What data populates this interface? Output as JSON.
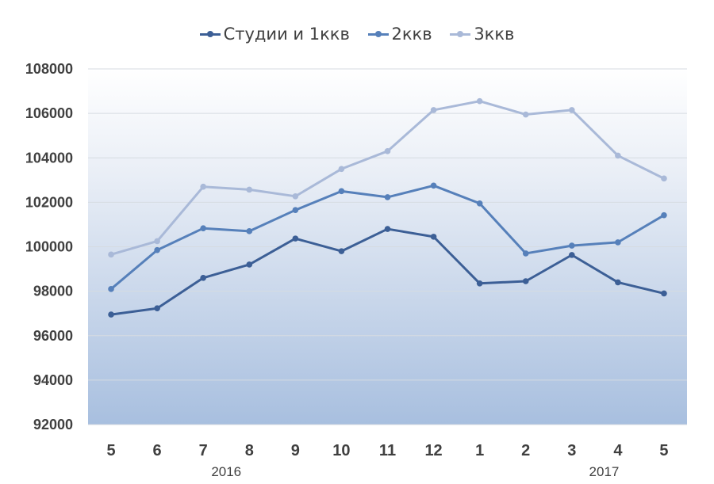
{
  "chart_data": {
    "type": "line",
    "categories": [
      "5",
      "6",
      "7",
      "8",
      "9",
      "10",
      "11",
      "12",
      "1",
      "2",
      "3",
      "4",
      "5"
    ],
    "year_labels": [
      {
        "label": "2016",
        "category_index": 2.5
      },
      {
        "label": "2017",
        "category_index": 10.7
      }
    ],
    "ylim": [
      92000,
      108000
    ],
    "yticks": [
      "92000",
      "94000",
      "96000",
      "98000",
      "100000",
      "102000",
      "104000",
      "106000",
      "108000"
    ],
    "grid": true,
    "legend_position": "top",
    "series": [
      {
        "name": "Студии и 1ккв",
        "color": "#3c5f96",
        "values": [
          96950,
          97230,
          98600,
          99200,
          100370,
          99800,
          100800,
          100450,
          98350,
          98450,
          99630,
          98400,
          97900
        ]
      },
      {
        "name": "2ккв",
        "color": "#5680ba",
        "values": [
          98100,
          99850,
          100830,
          100700,
          101650,
          102500,
          102230,
          102750,
          101950,
          99700,
          100050,
          100200,
          101420
        ]
      },
      {
        "name": "3ккв",
        "color": "#a9b9d8",
        "values": [
          99650,
          100250,
          102700,
          102570,
          102270,
          103500,
          104300,
          106150,
          106550,
          105950,
          106150,
          104100,
          103070
        ]
      }
    ]
  }
}
